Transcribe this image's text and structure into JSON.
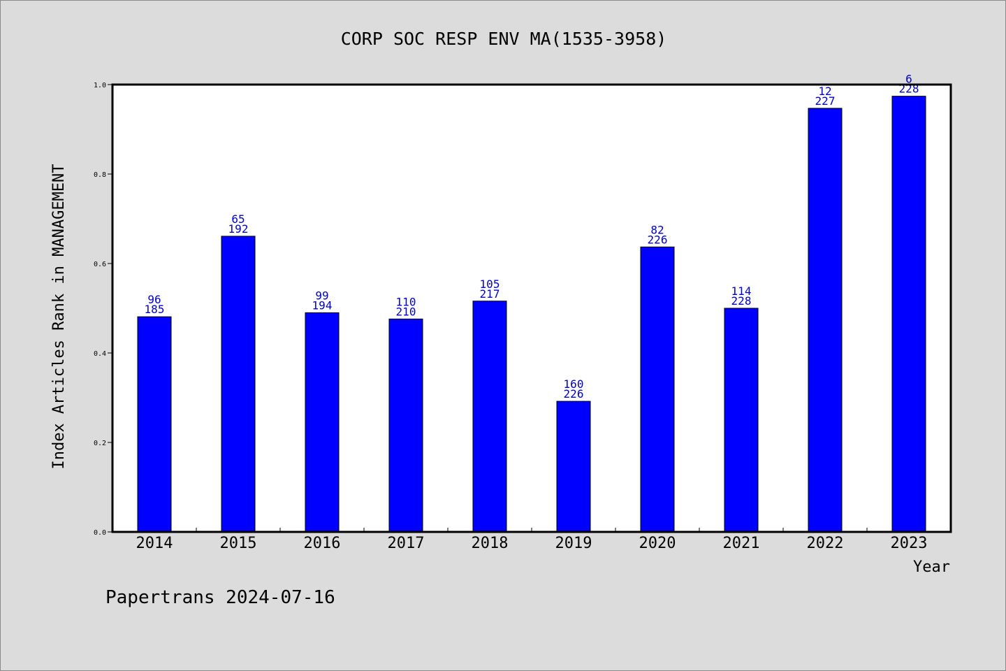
{
  "chart_data": {
    "type": "bar",
    "title": "CORP SOC RESP ENV MA(1535-3958)",
    "xlabel": "Year",
    "ylabel": "Index Articles Rank in MANAGEMENT",
    "ylim": [
      0.0,
      1.0
    ],
    "yticks": [
      "0.0",
      "0.2",
      "0.4",
      "0.6",
      "0.8",
      "1.0"
    ],
    "categories": [
      "2014",
      "2015",
      "2016",
      "2017",
      "2018",
      "2019",
      "2020",
      "2021",
      "2022",
      "2023"
    ],
    "values": [
      0.481,
      0.661,
      0.49,
      0.476,
      0.516,
      0.292,
      0.637,
      0.5,
      0.947,
      0.974
    ],
    "rank_labels": [
      "96",
      "65",
      "99",
      "110",
      "105",
      "160",
      "82",
      "114",
      "12",
      "6"
    ],
    "total_labels": [
      "185",
      "192",
      "194",
      "210",
      "217",
      "226",
      "226",
      "228",
      "227",
      "228"
    ],
    "bar_color": "#0000ff",
    "label_color": "#0000cc",
    "grid": false,
    "legend": "none"
  },
  "footer": "Papertrans 2024-07-16"
}
